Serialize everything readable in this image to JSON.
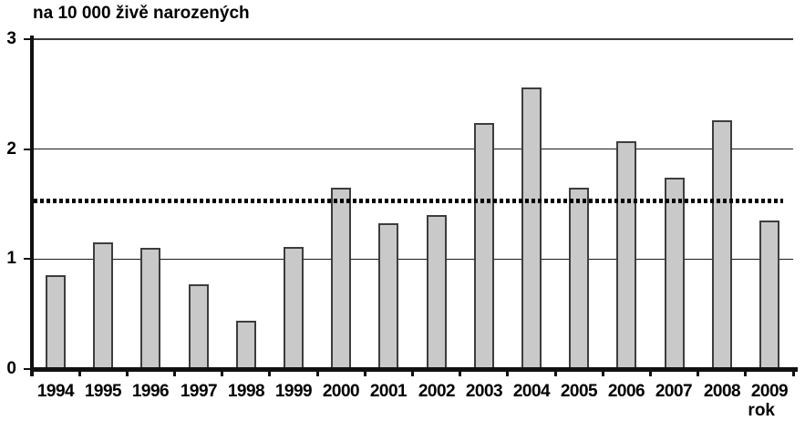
{
  "chart_data": {
    "type": "bar",
    "title": "na 10 000 živě narozených",
    "xlabel": "rok",
    "ylabel": "na 10 000 živě narozených",
    "categories": [
      "1994",
      "1995",
      "1996",
      "1997",
      "1998",
      "1999",
      "2000",
      "2001",
      "2002",
      "2003",
      "2004",
      "2005",
      "2006",
      "2007",
      "2008",
      "2009"
    ],
    "values": [
      0.85,
      1.15,
      1.1,
      0.77,
      0.44,
      1.11,
      1.65,
      1.33,
      1.4,
      2.24,
      2.56,
      1.65,
      2.07,
      1.74,
      2.26,
      1.35
    ],
    "ylim": [
      0,
      3
    ],
    "yticks": [
      "0",
      "1",
      "2",
      "3"
    ],
    "reference_line": {
      "value": 1.53,
      "style": "dotted",
      "color": "#000000"
    },
    "grid": true,
    "legend": "none",
    "colors": {
      "bar_fill": "#c9c9c9",
      "bar_border": "#3d3d3d",
      "axis": "#111111",
      "gridline": "#1a1a1a",
      "top_gridline": "#3a3a3a",
      "text": "#000000",
      "background": "#ffffff"
    }
  }
}
